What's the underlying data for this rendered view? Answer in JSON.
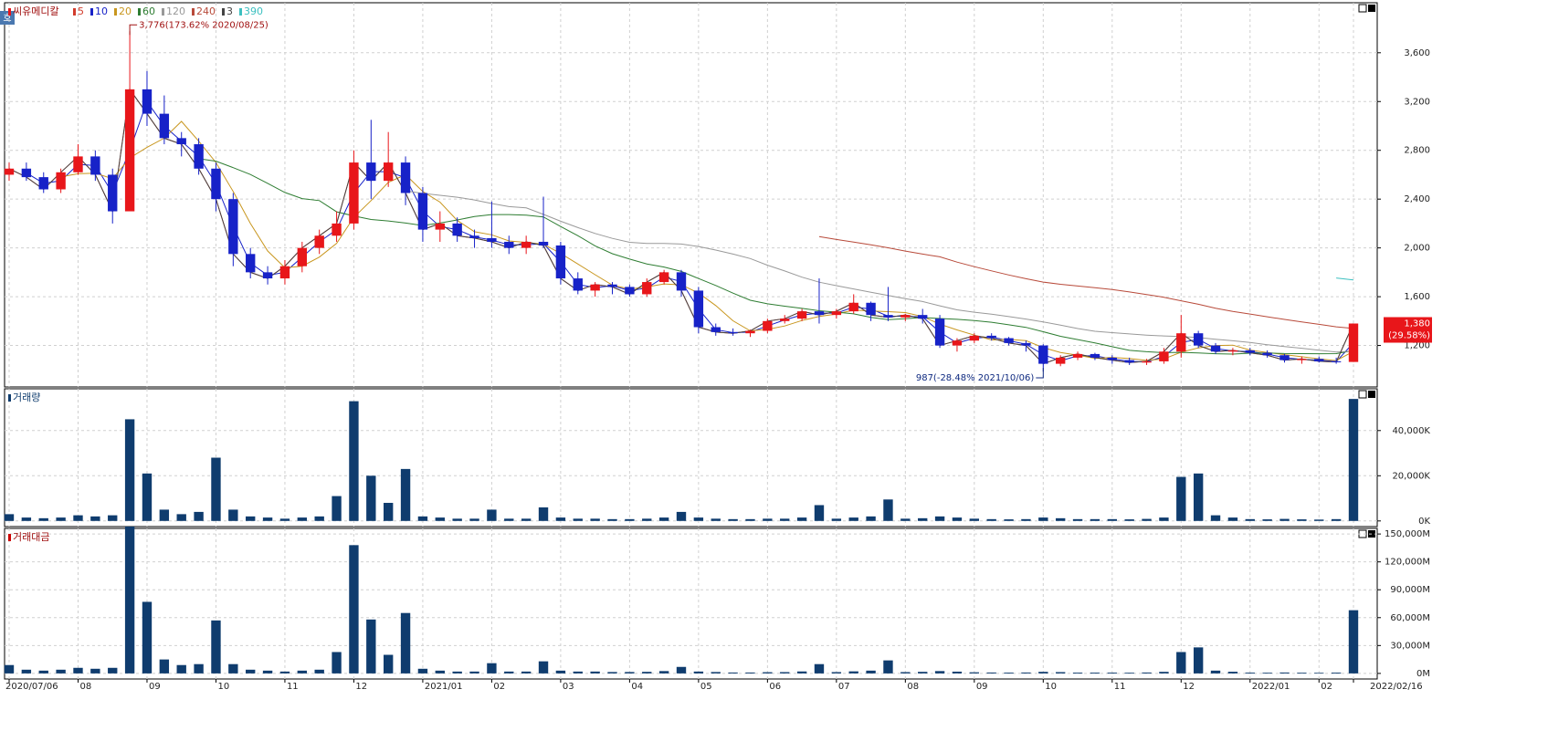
{
  "chart_data": [
    {
      "type": "candlestick",
      "title": "씨유메디칼",
      "up_color": "#e8161a",
      "down_color": "#1722c8",
      "moving_averages": [
        {
          "name": "5",
          "color": "#d23c2c"
        },
        {
          "name": "10",
          "color": "#1722c8"
        },
        {
          "name": "20",
          "color": "#c8961e"
        },
        {
          "name": "60",
          "color": "#2e7d32"
        },
        {
          "name": "120",
          "color": "#999999"
        },
        {
          "name": "240",
          "color": "#b84a3a"
        },
        {
          "name": "3",
          "color": "#444444"
        },
        {
          "name": "390",
          "color": "#3cc0c0"
        }
      ],
      "categories": [
        "2020/07/06",
        null,
        null,
        null,
        "08",
        null,
        null,
        null,
        "09",
        null,
        null,
        null,
        "10",
        null,
        null,
        null,
        "11",
        null,
        null,
        null,
        "12",
        null,
        null,
        null,
        "2021/01",
        null,
        null,
        null,
        "02",
        null,
        null,
        null,
        "03",
        null,
        null,
        null,
        "04",
        null,
        null,
        null,
        "05",
        null,
        null,
        null,
        "06",
        null,
        null,
        null,
        "07",
        null,
        null,
        null,
        "08",
        null,
        null,
        null,
        "09",
        null,
        null,
        null,
        "10",
        null,
        null,
        null,
        "11",
        null,
        null,
        null,
        "12",
        null,
        null,
        null,
        "2022/01",
        null,
        null,
        null,
        "02",
        null,
        "2022/02/16"
      ],
      "open": [
        2600,
        2650,
        2580,
        2480,
        2620,
        2750,
        2600,
        2300,
        3300,
        3100,
        2900,
        2850,
        2650,
        2400,
        1950,
        1800,
        1750,
        1850,
        2000,
        2100,
        2200,
        2700,
        2550,
        2700,
        2450,
        2150,
        2200,
        2100,
        2080,
        2050,
        2000,
        2050,
        2020,
        1750,
        1650,
        1700,
        1680,
        1620,
        1720,
        1800,
        1650,
        1350,
        1310,
        1300,
        1320,
        1400,
        1420,
        1480,
        1450,
        1480,
        1550,
        1450,
        1430,
        1450,
        1420,
        1200,
        1240,
        1280,
        1260,
        1220,
        1200,
        1050,
        1100,
        1130,
        1100,
        1080,
        1060,
        1070,
        1150,
        1300,
        1200,
        1150,
        1160,
        1140,
        1120,
        1080,
        1090,
        1070,
        1065
      ],
      "high": [
        2700,
        2700,
        2620,
        2650,
        2850,
        2800,
        2650,
        3776,
        3450,
        3250,
        2950,
        2900,
        2700,
        2450,
        2000,
        1850,
        1900,
        2050,
        2150,
        2300,
        2800,
        3050,
        2950,
        2750,
        2500,
        2300,
        2250,
        2150,
        2380,
        2100,
        2100,
        2420,
        2050,
        1800,
        1720,
        1720,
        1700,
        1750,
        1820,
        1820,
        1680,
        1380,
        1340,
        1330,
        1420,
        1450,
        1500,
        1750,
        1500,
        1620,
        1560,
        1680,
        1460,
        1500,
        1450,
        1260,
        1300,
        1300,
        1270,
        1240,
        1210,
        1120,
        1150,
        1140,
        1120,
        1100,
        1090,
        1180,
        1450,
        1320,
        1220,
        1180,
        1180,
        1160,
        1130,
        1110,
        1110,
        1100,
        1380
      ],
      "low": [
        2550,
        2550,
        2450,
        2450,
        2600,
        2550,
        2200,
        2300,
        3000,
        2850,
        2750,
        2600,
        2300,
        1850,
        1750,
        1700,
        1700,
        1800,
        1950,
        2050,
        2150,
        2400,
        2500,
        2350,
        2050,
        2050,
        2050,
        2000,
        2000,
        1950,
        1950,
        2000,
        1700,
        1620,
        1600,
        1620,
        1600,
        1600,
        1700,
        1600,
        1300,
        1280,
        1280,
        1270,
        1300,
        1380,
        1400,
        1380,
        1420,
        1460,
        1400,
        1400,
        1400,
        1380,
        1180,
        1150,
        1220,
        1240,
        1200,
        1150,
        987,
        1030,
        1080,
        1080,
        1050,
        1040,
        1040,
        1050,
        1100,
        1180,
        1130,
        1120,
        1120,
        1100,
        1060,
        1050,
        1060,
        1050,
        1065
      ],
      "close": [
        2650,
        2580,
        2480,
        2620,
        2750,
        2600,
        2300,
        3300,
        3100,
        2900,
        2850,
        2650,
        2400,
        1950,
        1800,
        1750,
        1850,
        2000,
        2100,
        2200,
        2700,
        2550,
        2700,
        2450,
        2150,
        2200,
        2100,
        2080,
        2050,
        2000,
        2050,
        2020,
        1750,
        1650,
        1700,
        1680,
        1620,
        1720,
        1800,
        1650,
        1350,
        1310,
        1300,
        1320,
        1400,
        1420,
        1480,
        1450,
        1480,
        1550,
        1450,
        1430,
        1450,
        1420,
        1200,
        1240,
        1280,
        1260,
        1220,
        1200,
        1050,
        1100,
        1130,
        1100,
        1080,
        1060,
        1070,
        1150,
        1300,
        1200,
        1150,
        1160,
        1140,
        1120,
        1080,
        1090,
        1070,
        1065,
        1380
      ],
      "ylim": [
        860,
        4010
      ],
      "yticks": [
        {
          "value": 1200,
          "label": "1,200"
        },
        {
          "value": 1600,
          "label": "1,600"
        },
        {
          "value": 2000,
          "label": "2,000"
        },
        {
          "value": 2400,
          "label": "2,400"
        },
        {
          "value": 2800,
          "label": "2,800"
        },
        {
          "value": 3200,
          "label": "3,200"
        },
        {
          "value": 3600,
          "label": "3,600"
        }
      ],
      "annotations": [
        "3,776(173.62% 2020/08/25)",
        "987(-28.48% 2021/10/06)"
      ],
      "last_price": {
        "value": 1380,
        "label": "1,380"
      },
      "last_change": "(29.58%)",
      "button": "호"
    },
    {
      "type": "bar",
      "title": "거래량",
      "color": "#0f3c6e",
      "values": [
        3000,
        1500,
        1200,
        1500,
        2500,
        2000,
        2500,
        45000,
        21000,
        5000,
        3000,
        4000,
        28000,
        5000,
        2000,
        1500,
        1000,
        1500,
        2000,
        11000,
        53000,
        20000,
        8000,
        23000,
        2000,
        1500,
        1000,
        1000,
        5000,
        1000,
        1000,
        6000,
        1500,
        1000,
        1000,
        800,
        800,
        1000,
        1500,
        4000,
        1500,
        1000,
        800,
        800,
        1000,
        1000,
        1500,
        7000,
        1000,
        1500,
        2000,
        9500,
        1000,
        1200,
        2000,
        1500,
        1000,
        800,
        700,
        800,
        1500,
        1200,
        800,
        800,
        800,
        700,
        900,
        1500,
        19500,
        21000,
        2500,
        1500,
        800,
        700,
        900,
        700,
        600,
        800,
        54000
      ],
      "ylim": [
        -2500,
        58500
      ],
      "yticks": [
        {
          "value": 0,
          "label": "0K"
        },
        {
          "value": 20000,
          "label": "20,000K"
        },
        {
          "value": 40000,
          "label": "40,000K"
        }
      ]
    },
    {
      "type": "bar",
      "title": "거래대금",
      "color": "#0f3c6e",
      "values": [
        9000,
        4000,
        3000,
        4000,
        6000,
        5000,
        6000,
        158000,
        77000,
        15000,
        9000,
        10000,
        57000,
        10000,
        4000,
        3000,
        2000,
        3000,
        4000,
        23000,
        138000,
        58000,
        20000,
        65000,
        5000,
        3000,
        2000,
        2000,
        11000,
        2000,
        2000,
        13000,
        3000,
        2000,
        2000,
        1500,
        1500,
        1700,
        2500,
        7000,
        2000,
        1500,
        1000,
        1000,
        1300,
        1400,
        2100,
        10000,
        1400,
        2200,
        3000,
        14000,
        1400,
        1700,
        2500,
        1900,
        1200,
        1000,
        900,
        1000,
        1700,
        1400,
        900,
        900,
        900,
        800,
        1000,
        1700,
        23000,
        28000,
        3000,
        1800,
        900,
        800,
        1000,
        800,
        700,
        900,
        68000
      ],
      "ylim": [
        -6000,
        156000
      ],
      "yticks": [
        {
          "value": 0,
          "label": "0M"
        },
        {
          "value": 30000,
          "label": "30,000M"
        },
        {
          "value": 60000,
          "label": "60,000M"
        },
        {
          "value": 90000,
          "label": "90,000M"
        },
        {
          "value": 120000,
          "label": "120,000M"
        },
        {
          "value": 150000,
          "label": "150,000M"
        }
      ]
    }
  ]
}
